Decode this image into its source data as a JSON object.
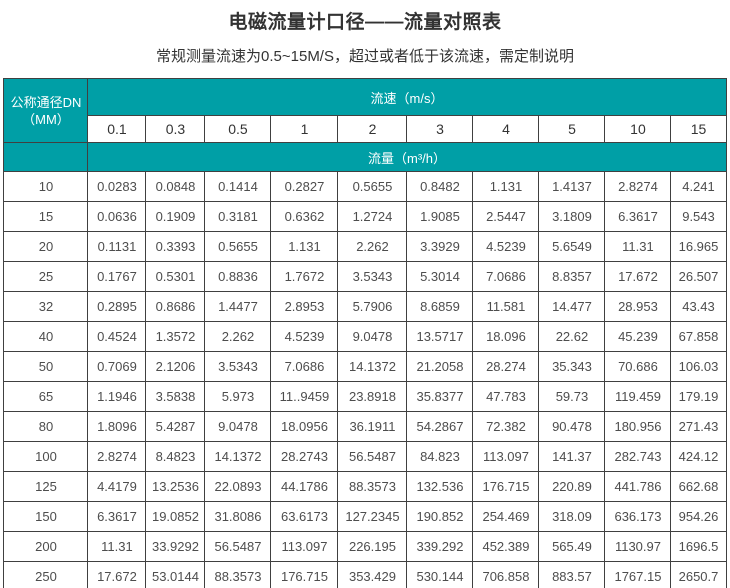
{
  "page": {
    "title": "电磁流量计口径——流量对照表",
    "subtitle": "常规测量流速为0.5~15M/S，超过或者低于该流速，需定制说明"
  },
  "colors": {
    "header_teal": "#009FA6",
    "table_border": "#404040",
    "header_text": "#FFFFFF",
    "body_text": "#4D4D4D",
    "title_text": "#333333"
  },
  "chart_data": {
    "type": "table",
    "title": "电磁流量计口径——流量对照表",
    "corner_header_line1": "公称通径DN",
    "corner_header_line2": "（MM）",
    "velocity_header": "流速（m/s）",
    "flow_header": "流量（m³/h）",
    "velocities": [
      "0.1",
      "0.3",
      "0.5",
      "1",
      "2",
      "3",
      "4",
      "5",
      "10",
      "15"
    ],
    "rows": [
      {
        "dn": "10",
        "values": [
          "0.0283",
          "0.0848",
          "0.1414",
          "0.2827",
          "0.5655",
          "0.8482",
          "1.131",
          "1.4137",
          "2.8274",
          "4.241"
        ]
      },
      {
        "dn": "15",
        "values": [
          "0.0636",
          "0.1909",
          "0.3181",
          "0.6362",
          "1.2724",
          "1.9085",
          "2.5447",
          "3.1809",
          "6.3617",
          "9.543"
        ]
      },
      {
        "dn": "20",
        "values": [
          "0.1131",
          "0.3393",
          "0.5655",
          "1.131",
          "2.262",
          "3.3929",
          "4.5239",
          "5.6549",
          "11.31",
          "16.965"
        ]
      },
      {
        "dn": "25",
        "values": [
          "0.1767",
          "0.5301",
          "0.8836",
          "1.7672",
          "3.5343",
          "5.3014",
          "7.0686",
          "8.8357",
          "17.672",
          "26.507"
        ]
      },
      {
        "dn": "32",
        "values": [
          "0.2895",
          "0.8686",
          "1.4477",
          "2.8953",
          "5.7906",
          "8.6859",
          "11.581",
          "14.477",
          "28.953",
          "43.43"
        ]
      },
      {
        "dn": "40",
        "values": [
          "0.4524",
          "1.3572",
          "2.262",
          "4.5239",
          "9.0478",
          "13.5717",
          "18.096",
          "22.62",
          "45.239",
          "67.858"
        ]
      },
      {
        "dn": "50",
        "values": [
          "0.7069",
          "2.1206",
          "3.5343",
          "7.0686",
          "14.1372",
          "21.2058",
          "28.274",
          "35.343",
          "70.686",
          "106.03"
        ]
      },
      {
        "dn": "65",
        "values": [
          "1.1946",
          "3.5838",
          "5.973",
          "11..9459",
          "23.8918",
          "35.8377",
          "47.783",
          "59.73",
          "119.459",
          "179.19"
        ]
      },
      {
        "dn": "80",
        "values": [
          "1.8096",
          "5.4287",
          "9.0478",
          "18.0956",
          "36.1911",
          "54.2867",
          "72.382",
          "90.478",
          "180.956",
          "271.43"
        ]
      },
      {
        "dn": "100",
        "values": [
          "2.8274",
          "8.4823",
          "14.1372",
          "28.2743",
          "56.5487",
          "84.823",
          "113.097",
          "141.37",
          "282.743",
          "424.12"
        ]
      },
      {
        "dn": "125",
        "values": [
          "4.4179",
          "13.2536",
          "22.0893",
          "44.1786",
          "88.3573",
          "132.536",
          "176.715",
          "220.89",
          "441.786",
          "662.68"
        ]
      },
      {
        "dn": "150",
        "values": [
          "6.3617",
          "19.0852",
          "31.8086",
          "63.6173",
          "127.2345",
          "190.852",
          "254.469",
          "318.09",
          "636.173",
          "954.26"
        ]
      },
      {
        "dn": "200",
        "values": [
          "11.31",
          "33.9292",
          "56.5487",
          "113.097",
          "226.195",
          "339.292",
          "452.389",
          "565.49",
          "1130.97",
          "1696.5"
        ]
      },
      {
        "dn": "250",
        "values": [
          "17.672",
          "53.0144",
          "88.3573",
          "176.715",
          "353.429",
          "530.144",
          "706.858",
          "883.57",
          "1767.15",
          "2650.7"
        ]
      }
    ]
  }
}
